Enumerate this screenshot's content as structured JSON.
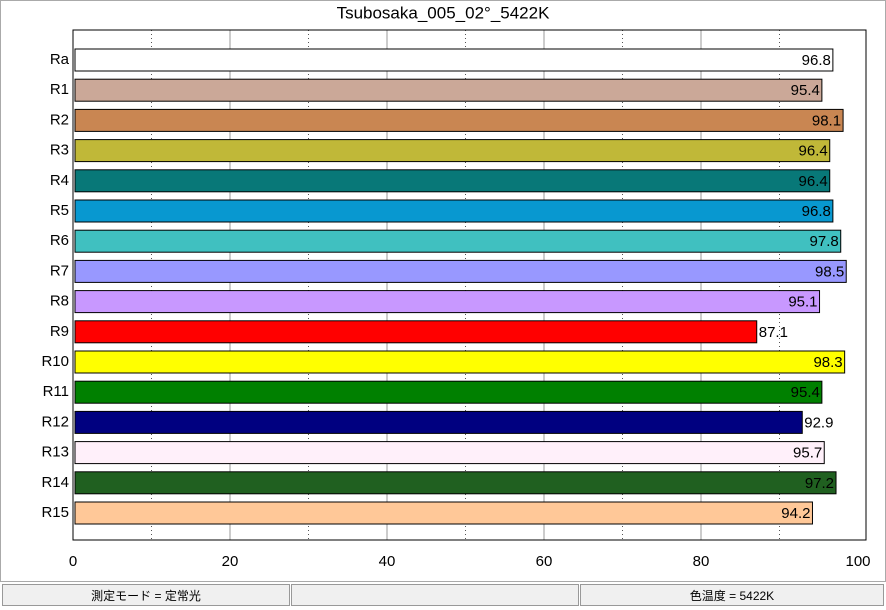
{
  "chart_data": {
    "type": "bar",
    "orientation": "horizontal",
    "title": "Tsubosaka_005_02°_5422K",
    "categories": [
      "Ra",
      "R1",
      "R2",
      "R3",
      "R4",
      "R5",
      "R6",
      "R7",
      "R8",
      "R9",
      "R10",
      "R11",
      "R12",
      "R13",
      "R14",
      "R15"
    ],
    "values": [
      96.8,
      95.4,
      98.1,
      96.4,
      96.4,
      96.8,
      97.8,
      98.5,
      95.1,
      87.1,
      98.3,
      95.4,
      92.9,
      95.7,
      97.2,
      94.2
    ],
    "colors": [
      "#ffffff",
      "#cba898",
      "#c98652",
      "#c0b838",
      "#087878",
      "#0898d0",
      "#40c0c0",
      "#9898ff",
      "#c898ff",
      "#ff0000",
      "#ffff00",
      "#008000",
      "#000080",
      "#fff0fa",
      "#206020",
      "#ffc898"
    ],
    "xlim": [
      0,
      100
    ],
    "xticks": [
      0,
      20,
      40,
      60,
      80,
      100
    ],
    "grid": true
  },
  "status_bar": {
    "mode": "測定モード = 定常光",
    "color_temperature": "色温度 = 5422K"
  }
}
